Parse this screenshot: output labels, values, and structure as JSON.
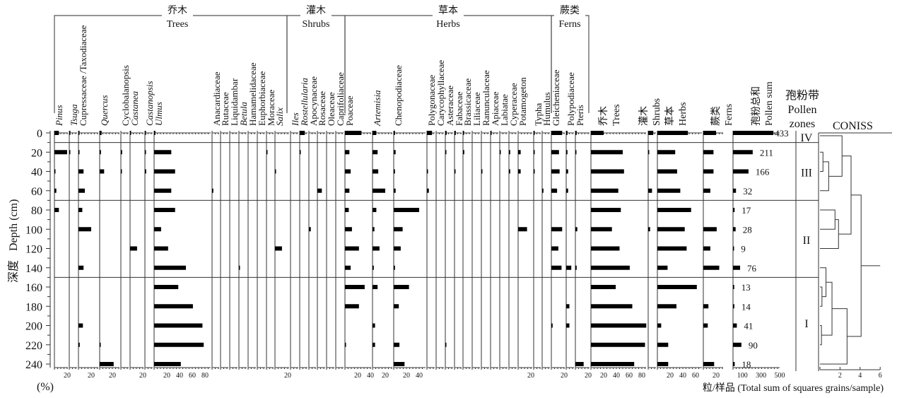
{
  "chart_data": {
    "type": "bar",
    "depth_label_cn": "深度",
    "depth_label": "Depth (cm)",
    "percent_label": "(%)",
    "units_caption": "粒/样品 (Total sum of squares grains/sample)",
    "depth_ylim": [
      0,
      240
    ],
    "depth_ticks": [
      0,
      20,
      40,
      60,
      80,
      100,
      120,
      140,
      160,
      180,
      200,
      220,
      240
    ],
    "depths": [
      0,
      20,
      40,
      60,
      80,
      100,
      120,
      140,
      160,
      180,
      200,
      220,
      240
    ],
    "groups": [
      {
        "cn": "乔木",
        "en": "Trees"
      },
      {
        "cn": "灌木",
        "en": "Shrubs"
      },
      {
        "cn": "草本",
        "en": "Herbs"
      },
      {
        "cn": "蕨类",
        "en": "Ferns"
      }
    ],
    "taxa": [
      {
        "name": "Pinus",
        "group": "Trees",
        "ticks": [
          "20"
        ],
        "values": [
          7,
          20,
          1,
          3,
          7,
          0,
          0,
          0,
          0,
          0,
          0,
          0,
          0
        ]
      },
      {
        "name": "Tsuga",
        "group": "Trees",
        "ticks": [],
        "values": [
          1,
          1,
          0,
          0,
          0,
          0,
          0,
          0,
          0,
          0,
          0,
          0,
          0
        ]
      },
      {
        "name": "Cupressaceae /Taxodiaceae",
        "group": "Trees",
        "ticks": [
          "20"
        ],
        "values": [
          1,
          1,
          8,
          10,
          6,
          20,
          0,
          8,
          0,
          0,
          7,
          2,
          0
        ]
      },
      {
        "name": "Quercus",
        "group": "Trees",
        "ticks": [
          "20"
        ],
        "values": [
          3,
          2,
          7,
          0,
          0,
          0,
          0,
          0,
          0,
          0,
          0,
          1,
          22
        ]
      },
      {
        "name": "Cyclobalanopsis",
        "group": "Trees",
        "ticks": [],
        "values": [
          0,
          2,
          1,
          0,
          0,
          0,
          0,
          0,
          0,
          0,
          0,
          0,
          0
        ]
      },
      {
        "name": "Castanea",
        "group": "Trees",
        "ticks": [
          "20"
        ],
        "values": [
          1,
          0,
          0,
          0,
          0,
          0,
          11,
          0,
          0,
          0,
          0,
          0,
          0
        ]
      },
      {
        "name": "Castanopsis",
        "group": "Trees",
        "ticks": [],
        "values": [
          1,
          1,
          2,
          0,
          0,
          0,
          0,
          0,
          0,
          0,
          0,
          0,
          0
        ]
      },
      {
        "name": "Ulmus",
        "group": "Trees",
        "ticks": [
          "20",
          "40",
          "60",
          "80"
        ],
        "values": [
          2,
          27,
          33,
          27,
          33,
          11,
          22,
          50,
          38,
          61,
          76,
          78,
          42
        ]
      },
      {
        "name": "Anacardiaceae",
        "group": "Trees",
        "ticks": [],
        "values": [
          0,
          0,
          0,
          2,
          0,
          0,
          0,
          0,
          0,
          0,
          0,
          0,
          0
        ]
      },
      {
        "name": "Rutaceae",
        "group": "Trees",
        "ticks": [],
        "values": [
          0,
          0,
          0,
          0,
          0,
          0,
          0,
          0,
          0,
          0,
          0,
          0,
          0
        ]
      },
      {
        "name": "Liquidambar",
        "group": "Trees",
        "ticks": [],
        "values": [
          0,
          0,
          0,
          0,
          0,
          0,
          0,
          0,
          0,
          0,
          0,
          0,
          0
        ]
      },
      {
        "name": "Betula",
        "group": "Trees",
        "ticks": [],
        "values": [
          0,
          0,
          0,
          0,
          0,
          0,
          0,
          1,
          0,
          0,
          0,
          0,
          0
        ]
      },
      {
        "name": "Hamamelidaceae",
        "group": "Trees",
        "ticks": [],
        "values": [
          0,
          0,
          0,
          0,
          0,
          0,
          0,
          0,
          0,
          0,
          0,
          0,
          0
        ]
      },
      {
        "name": "Euphorbiaceae",
        "group": "Trees",
        "ticks": [],
        "values": [
          0,
          0,
          0,
          0,
          0,
          0,
          0,
          0,
          0,
          0,
          0,
          0,
          0
        ]
      },
      {
        "name": "Moraceae",
        "group": "Trees",
        "ticks": [],
        "values": [
          0,
          1,
          0,
          0,
          0,
          0,
          0,
          0,
          0,
          0,
          0,
          0,
          0
        ]
      },
      {
        "name": "Salix",
        "group": "Trees",
        "ticks": [
          "20"
        ],
        "values": [
          0,
          0,
          1,
          0,
          0,
          0,
          11,
          0,
          0,
          0,
          0,
          0,
          0
        ]
      },
      {
        "name": "Iles",
        "group": "Shrubs",
        "ticks": [],
        "values": [
          0,
          0,
          0,
          0,
          0,
          0,
          0,
          0,
          0,
          0,
          0,
          0,
          0
        ]
      },
      {
        "name": "Rostellularia",
        "group": "Shrubs",
        "ticks": [],
        "values": [
          8,
          1,
          0,
          0,
          0,
          0,
          0,
          0,
          0,
          0,
          0,
          0,
          0
        ]
      },
      {
        "name": "Apocynaceae",
        "group": "Shrubs",
        "ticks": [],
        "values": [
          0,
          0,
          0,
          0,
          0,
          3,
          0,
          0,
          0,
          0,
          0,
          0,
          0
        ]
      },
      {
        "name": "Rosaceae",
        "group": "Shrubs",
        "ticks": [],
        "values": [
          0,
          0,
          0,
          7,
          0,
          0,
          0,
          0,
          0,
          0,
          0,
          0,
          0
        ]
      },
      {
        "name": "Oleaceae",
        "group": "Shrubs",
        "ticks": [],
        "values": [
          0,
          0,
          0,
          0,
          0,
          0,
          0,
          0,
          0,
          0,
          0,
          0,
          0
        ]
      },
      {
        "name": "Caprifoliaceae",
        "group": "Shrubs",
        "ticks": [],
        "values": [
          0,
          0,
          0,
          0,
          0,
          0,
          0,
          0,
          0,
          0,
          0,
          0,
          0
        ]
      },
      {
        "name": "Poaceae",
        "group": "Herbs",
        "ticks": [
          "20",
          "40"
        ],
        "values": [
          26,
          7,
          9,
          7,
          6,
          11,
          22,
          9,
          31,
          22,
          0,
          1,
          0
        ]
      },
      {
        "name": "Artemisia",
        "group": "Herbs",
        "ticks": [
          "20"
        ],
        "values": [
          6,
          8,
          9,
          20,
          6,
          3,
          11,
          2,
          8,
          0,
          4,
          4,
          0
        ]
      },
      {
        "name": "Chenopodiaceae",
        "group": "Herbs",
        "ticks": [
          "20",
          "40"
        ],
        "values": [
          2,
          3,
          2,
          3,
          40,
          14,
          11,
          2,
          24,
          8,
          0,
          9,
          17
        ]
      },
      {
        "name": "Polygonaceae",
        "group": "Herbs",
        "ticks": [],
        "values": [
          8,
          0,
          1,
          3,
          0,
          0,
          0,
          0,
          0,
          0,
          0,
          0,
          0
        ]
      },
      {
        "name": "Carycophyllaceae",
        "group": "Herbs",
        "ticks": [],
        "values": [
          0,
          0,
          0,
          0,
          0,
          0,
          0,
          0,
          0,
          0,
          0,
          0,
          0
        ]
      },
      {
        "name": "Asteraceae",
        "group": "Herbs",
        "ticks": [],
        "values": [
          2,
          1,
          0,
          0,
          0,
          0,
          0,
          0,
          0,
          0,
          0,
          1,
          0
        ]
      },
      {
        "name": "Fabaceae",
        "group": "Herbs",
        "ticks": [],
        "values": [
          2,
          0,
          1,
          0,
          0,
          0,
          0,
          0,
          0,
          0,
          0,
          0,
          0
        ]
      },
      {
        "name": "Brassicaceae",
        "group": "Herbs",
        "ticks": [],
        "values": [
          1,
          2,
          0,
          0,
          0,
          0,
          0,
          0,
          0,
          0,
          0,
          0,
          0
        ]
      },
      {
        "name": "Liliaceae",
        "group": "Herbs",
        "ticks": [],
        "values": [
          0,
          0,
          0,
          0,
          0,
          0,
          0,
          0,
          0,
          0,
          0,
          0,
          0
        ]
      },
      {
        "name": "Ranunculaceae",
        "group": "Herbs",
        "ticks": [],
        "values": [
          0,
          0,
          1,
          0,
          0,
          0,
          0,
          0,
          0,
          0,
          0,
          0,
          0
        ]
      },
      {
        "name": "Apiaceae",
        "group": "Herbs",
        "ticks": [],
        "values": [
          1,
          0,
          0,
          0,
          0,
          0,
          0,
          0,
          0,
          0,
          0,
          0,
          0
        ]
      },
      {
        "name": "Labiatae",
        "group": "Herbs",
        "ticks": [],
        "values": [
          0,
          1,
          0,
          0,
          0,
          0,
          0,
          0,
          0,
          0,
          0,
          0,
          0
        ]
      },
      {
        "name": "Cyperaceae",
        "group": "Herbs",
        "ticks": [],
        "values": [
          0,
          2,
          2,
          0,
          0,
          0,
          0,
          0,
          0,
          0,
          0,
          0,
          0
        ]
      },
      {
        "name": "Potamogeton",
        "group": "Herbs",
        "ticks": [
          "20"
        ],
        "values": [
          0,
          4,
          4,
          0,
          0,
          14,
          0,
          0,
          0,
          0,
          0,
          0,
          0
        ]
      },
      {
        "name": "Typha",
        "group": "Herbs",
        "ticks": [],
        "values": [
          1,
          1,
          1,
          0,
          0,
          0,
          0,
          0,
          0,
          0,
          0,
          0,
          0
        ]
      },
      {
        "name": "Humulus",
        "group": "Herbs",
        "ticks": [],
        "values": [
          0,
          0,
          0,
          2,
          0,
          0,
          0,
          0,
          0,
          0,
          0,
          0,
          0
        ]
      },
      {
        "name": "Gleicheniaceae",
        "group": "Ferns",
        "ticks": [
          "20"
        ],
        "values": [
          17,
          12,
          13,
          9,
          0,
          17,
          11,
          16,
          0,
          0,
          2,
          0,
          0
        ]
      },
      {
        "name": "Polypodiaceae",
        "group": "Ferns",
        "ticks": [],
        "values": [
          2,
          2,
          3,
          3,
          0,
          0,
          0,
          8,
          0,
          5,
          5,
          0,
          0
        ]
      },
      {
        "name": "Pteris",
        "group": "Ferns",
        "ticks": [
          "20"
        ],
        "values": [
          2,
          1,
          0,
          0,
          0,
          3,
          0,
          2,
          0,
          0,
          0,
          0,
          13
        ]
      }
    ],
    "summary": [
      {
        "cn": "乔木",
        "en": "Trees",
        "ticks": [
          "20",
          "40",
          "60",
          "80"
        ],
        "values": [
          20,
          50,
          52,
          43,
          47,
          33,
          45,
          61,
          39,
          65,
          87,
          85,
          68
        ]
      },
      {
        "cn": "灌木",
        "en": "Shrubs",
        "ticks": [],
        "values": [
          8,
          1,
          0,
          6,
          0,
          3,
          0,
          0,
          0,
          0,
          0,
          0,
          0
        ]
      },
      {
        "cn": "草本",
        "en": "Herbs",
        "ticks": [
          "20",
          "40",
          "60"
        ],
        "values": [
          48,
          28,
          31,
          36,
          53,
          43,
          46,
          16,
          62,
          30,
          6,
          17,
          17
        ]
      },
      {
        "cn": "蕨类",
        "en": "Ferns",
        "ticks": [
          "20"
        ],
        "values": [
          20,
          16,
          16,
          11,
          0,
          21,
          11,
          25,
          0,
          8,
          7,
          0,
          17
        ]
      }
    ],
    "pollen_sum": {
      "cn": "孢粉总和",
      "en": "Pollen sum",
      "xlim": [
        0,
        500
      ],
      "ticks": [
        "100",
        "300",
        "500"
      ],
      "values": [
        433,
        211,
        166,
        32,
        17,
        28,
        9,
        76,
        13,
        14,
        41,
        90,
        18
      ],
      "labels": [
        "433",
        "211",
        "166",
        "32",
        "17",
        "28",
        "9",
        "76",
        "13",
        "14",
        "41",
        "90",
        "18"
      ]
    },
    "zones": {
      "header_cn": "孢粉带",
      "header_en1": "Pollen",
      "header_en2": "zones",
      "items": [
        {
          "label": "IV",
          "top": 0,
          "bottom": 10
        },
        {
          "label": "III",
          "top": 10,
          "bottom": 70
        },
        {
          "label": "II",
          "top": 70,
          "bottom": 150
        },
        {
          "label": "I",
          "top": 150,
          "bottom": 250
        }
      ]
    },
    "coniss": {
      "label": "CONISS",
      "xlim": [
        0,
        6
      ],
      "ticks": [
        "2",
        "4",
        "6"
      ],
      "tree": {
        "h": 4.1,
        "c": [
          {
            "h": 3.1,
            "c": [
              {
                "h": 2.2,
                "c": [
                  0,
                  {
                    "h": 0.87,
                    "c": [
                      {
                        "h": 0.3,
                        "c": [
                          20,
                          40
                        ]
                      },
                      60
                    ]
                  }
                ]
              },
              {
                "h": 1.85,
                "c": [
                  {
                    "h": 1.5,
                    "c": [
                      80,
                      100
                    ]
                  },
                  120
                ]
              }
            ]
          },
          {
            "h": 2.7,
            "c": [
              {
                "h": 1.2,
                "c": [
                  {
                    "h": 0.6,
                    "c": [
                      140,
                      {
                        "h": 0.2,
                        "c": [
                          160,
                          180
                        ]
                      }
                    ]
                  },
                  {
                    "h": 0.15,
                    "c": [
                      200,
                      220
                    ]
                  }
                ]
              },
              240
            ]
          }
        ]
      }
    }
  }
}
